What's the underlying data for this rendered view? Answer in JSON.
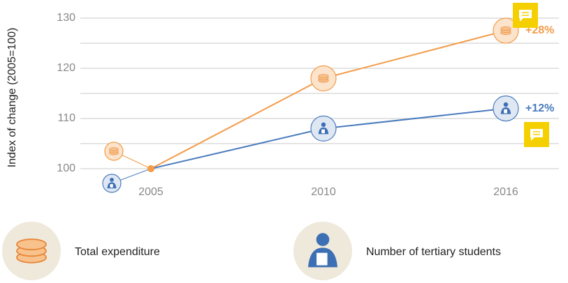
{
  "chart_data": {
    "type": "line",
    "y_label": "Index of change (2005=100)",
    "categories": [
      "2005",
      "2010",
      "2016"
    ],
    "series": [
      {
        "name": "Total expenditure",
        "color": "#f39c4a",
        "values": [
          100,
          118,
          127.5
        ],
        "label": "+28%"
      },
      {
        "name": "Number of tertiary students",
        "color": "#4a7bbd",
        "values": [
          100,
          108,
          112
        ],
        "label": "+12%"
      }
    ],
    "ylim": [
      95,
      133
    ],
    "yticks": [
      100,
      110,
      120,
      130
    ],
    "ygrid": [
      100,
      105,
      110,
      115,
      120,
      125,
      130
    ]
  }
}
